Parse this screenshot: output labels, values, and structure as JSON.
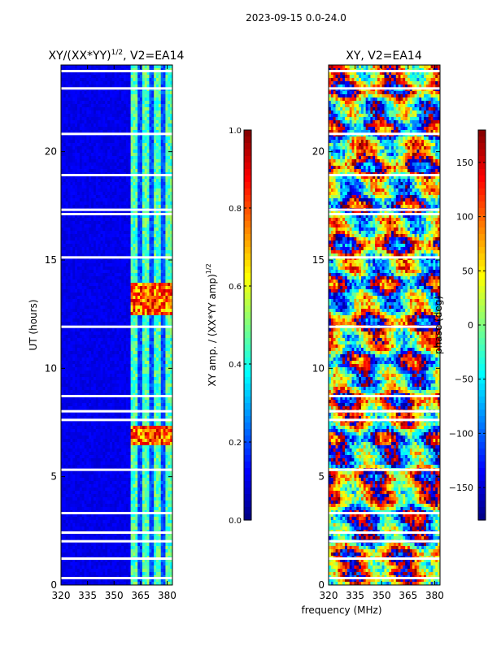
{
  "suptitle": "2023-09-15 0.0-24.0",
  "xlabel_shared": "frequency (MHz)",
  "colormap": [
    "#00007f",
    "#0000ff",
    "#007fff",
    "#00ffff",
    "#7fff7f",
    "#ffff00",
    "#ff7f00",
    "#ff0000",
    "#7f0000"
  ],
  "chart_data": [
    {
      "type": "heatmap",
      "title": "XY/(XX*YY)",
      "title_exponent": "1/2",
      "title_suffix": ", V2=EA14",
      "xlabel": "",
      "ylabel": "UT (hours)",
      "xlim": [
        320,
        383
      ],
      "ylim": [
        0,
        24
      ],
      "xticks": [
        320,
        335,
        350,
        365,
        380
      ],
      "yticks": [
        0,
        5,
        10,
        15,
        20
      ],
      "colorbar": {
        "label": "XY amp. / (XX*YY amp)",
        "label_exponent": "1/2",
        "range": [
          0.0,
          1.0
        ],
        "ticks": [
          "0.0",
          "0.2",
          "0.4",
          "0.6",
          "0.8",
          "1.0"
        ]
      },
      "description_values": {
        "background_level": 0.08,
        "band_start_mhz": 360,
        "high_hours": [
          [
            6.4,
            7.3
          ],
          [
            12.5,
            13.9
          ]
        ],
        "flagged_hours": [
          0.3,
          1.2,
          2.0,
          2.4,
          3.3,
          5.3,
          7.6,
          8.0,
          8.7,
          11.9,
          15.1,
          17.1,
          17.3,
          18.9,
          20.8,
          22.9,
          23.7
        ]
      }
    },
    {
      "type": "heatmap",
      "title": "XY, V2=EA14",
      "xlabel": "",
      "ylabel": "",
      "xlim": [
        320,
        383
      ],
      "ylim": [
        0,
        24
      ],
      "xticks": [
        320,
        335,
        350,
        365,
        380
      ],
      "yticks": [
        0,
        5,
        10,
        15,
        20
      ],
      "colorbar": {
        "label": "phase (deg)",
        "range": [
          -180,
          180
        ],
        "ticks": [
          "150",
          "100",
          "50",
          "0",
          "−50",
          "−100",
          "−150"
        ],
        "tick_values": [
          150,
          100,
          50,
          0,
          -50,
          -100,
          -150
        ]
      },
      "description_values": {
        "flagged_hours": [
          0.3,
          1.2,
          2.0,
          2.4,
          3.3,
          5.3,
          7.6,
          8.0,
          8.7,
          11.9,
          15.1,
          17.1,
          17.3,
          18.9,
          20.8,
          22.9,
          23.7
        ]
      }
    }
  ]
}
